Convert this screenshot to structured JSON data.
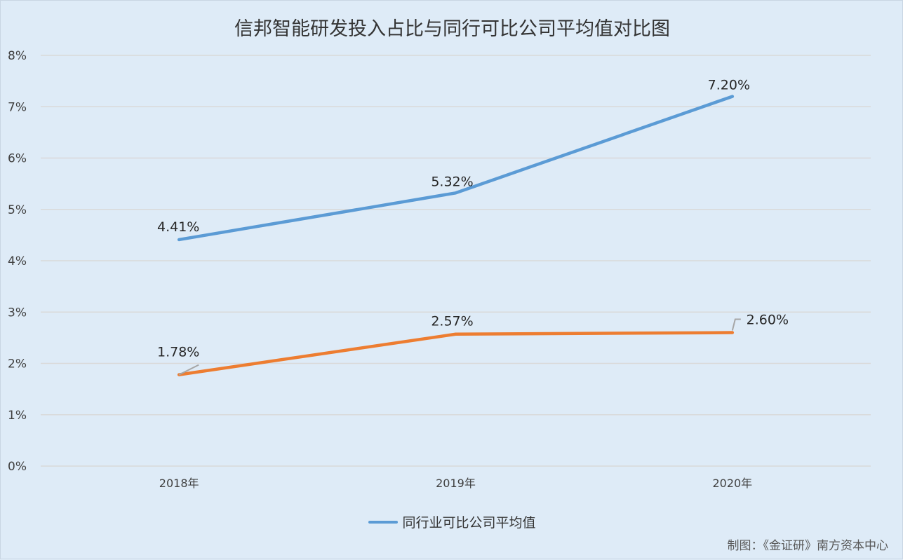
{
  "chart_data": {
    "type": "line",
    "title": "信邦智能研发投入占比与同行可比公司平均值对比图",
    "categories": [
      "2018年",
      "2019年",
      "2020年"
    ],
    "y_ticks": [
      "0%",
      "1%",
      "2%",
      "3%",
      "4%",
      "5%",
      "6%",
      "7%",
      "8%"
    ],
    "ylim": [
      0,
      8
    ],
    "grid": true,
    "legend_position": "bottom",
    "series": [
      {
        "name": "同行业可比公司平均值",
        "color": "#5b9bd5",
        "values": [
          4.41,
          5.32,
          7.2
        ],
        "labels": [
          "4.41%",
          "5.32%",
          "7.20%"
        ]
      },
      {
        "color": "#ed7d31",
        "values": [
          1.78,
          2.57,
          2.6
        ],
        "labels": [
          "1.78%",
          "2.57%",
          "2.60%"
        ]
      }
    ]
  },
  "source_note": "制图：《金证研》南方资本中心"
}
